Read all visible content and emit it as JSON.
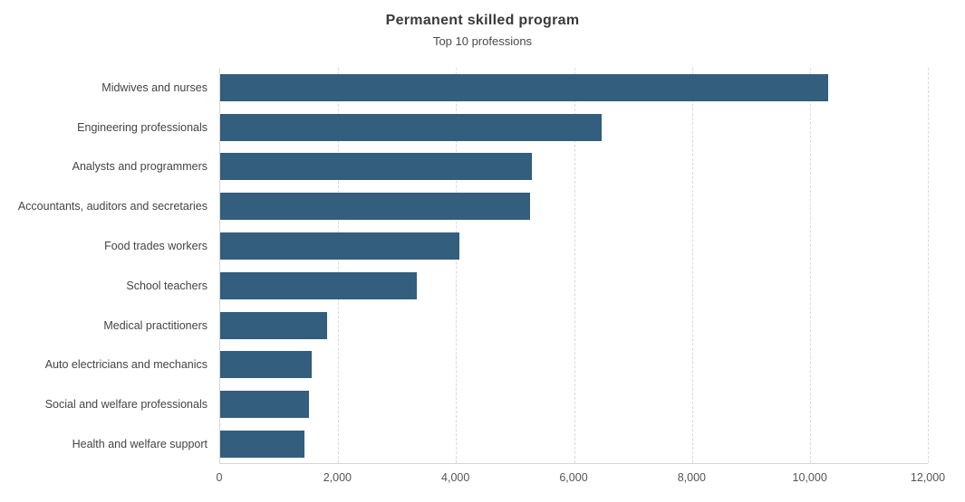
{
  "chart_data": {
    "type": "bar",
    "orientation": "horizontal",
    "title": "Permanent skilled program",
    "subtitle": "Top 10 professions",
    "categories": [
      "Midwives and nurses",
      "Engineering professionals",
      "Analysts and programmers",
      "Accountants, auditors and secretaries",
      "Food trades workers",
      "School teachers",
      "Medical practitioners",
      "Auto electricians and mechanics",
      "Social and welfare professionals",
      "Health and welfare support"
    ],
    "values": [
      10310,
      6470,
      5290,
      5260,
      4050,
      3330,
      1810,
      1550,
      1500,
      1430
    ],
    "xlabel": "",
    "ylabel": "",
    "xlim": [
      0,
      12000
    ],
    "xticks": [
      0,
      2000,
      4000,
      6000,
      8000,
      10000,
      12000
    ],
    "xtick_labels": [
      "0",
      "2,000",
      "4,000",
      "6,000",
      "8,000",
      "10,000",
      "12,000"
    ],
    "grid": "vertical-dashed",
    "legend": "none",
    "colors": {
      "bar": "#335E7D",
      "gridline": "#D9D9D9",
      "axis_line": "#D6D6D6",
      "title_text": "#3A3A3A",
      "label_text": "#444444",
      "tick_text": "#555555",
      "background": "#FFFFFF"
    }
  }
}
